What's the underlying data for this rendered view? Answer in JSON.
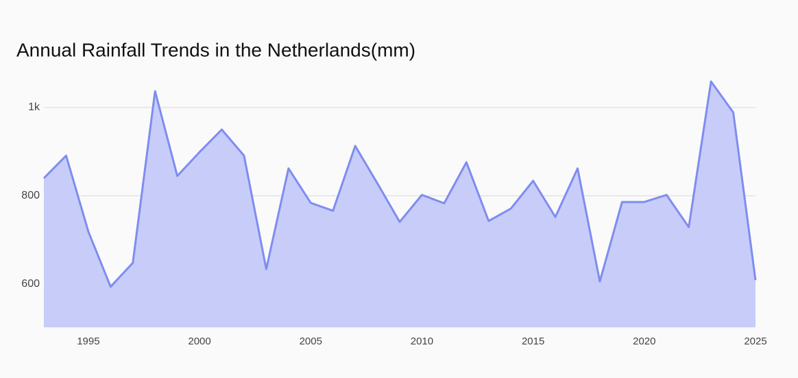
{
  "chart_data": {
    "type": "area",
    "title": "Annual Rainfall Trends in the Netherlands(mm)",
    "x": [
      1993,
      1994,
      1995,
      1996,
      1997,
      1998,
      1999,
      2000,
      2001,
      2002,
      2003,
      2004,
      2005,
      2006,
      2007,
      2008,
      2009,
      2010,
      2011,
      2012,
      2013,
      2014,
      2015,
      2016,
      2017,
      2018,
      2019,
      2020,
      2021,
      2022,
      2023,
      2024,
      2025
    ],
    "values": [
      840,
      891,
      719,
      594,
      648,
      1037,
      845,
      899,
      950,
      891,
      634,
      862,
      784,
      766,
      913,
      828,
      741,
      802,
      783,
      876,
      743,
      771,
      834,
      752,
      862,
      606,
      786,
      786,
      802,
      729,
      1059,
      989,
      609
    ],
    "color": "#7f8cf0",
    "fill_color": "#c7cdf8",
    "xlim": [
      1993,
      2025
    ],
    "xticks": [
      1995,
      2000,
      2005,
      2010,
      2015,
      2020,
      2025
    ],
    "ylim": [
      502,
      1090
    ],
    "yticks": [
      600,
      800,
      {
        "value": 1000,
        "label": "1k"
      }
    ],
    "grid": true
  }
}
